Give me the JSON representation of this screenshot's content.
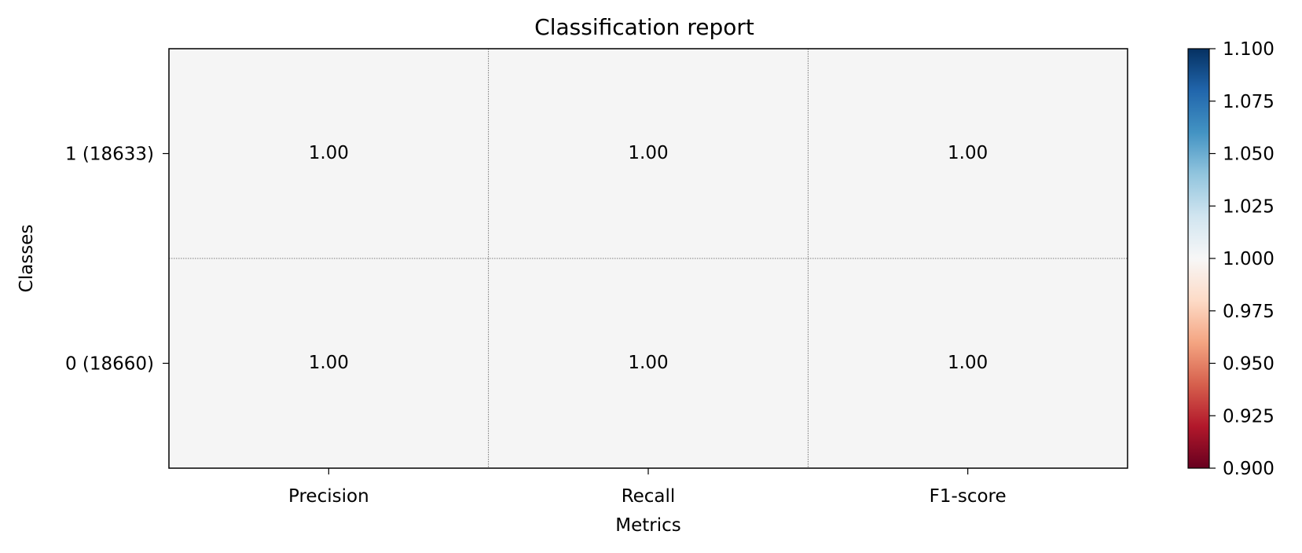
{
  "chart_data": {
    "type": "heatmap",
    "title": "Classification report",
    "xlabel": "Metrics",
    "ylabel": "Classes",
    "x_categories": [
      "Precision",
      "Recall",
      "F1-score"
    ],
    "y_categories": [
      "1 (18633)",
      "0 (18660)"
    ],
    "values": [
      [
        1.0,
        1.0,
        1.0
      ],
      [
        1.0,
        1.0,
        1.0
      ]
    ],
    "value_labels": [
      [
        "1.00",
        "1.00",
        "1.00"
      ],
      [
        "1.00",
        "1.00",
        "1.00"
      ]
    ],
    "colormap": "RdBu",
    "colorbar": {
      "min": 0.9,
      "max": 1.1,
      "ticks": [
        "0.900",
        "0.925",
        "0.950",
        "0.975",
        "1.000",
        "1.025",
        "1.050",
        "1.075",
        "1.100"
      ]
    },
    "grid": true,
    "colors": {
      "cell": "#f5f5f5",
      "grid_line": "#555555"
    }
  }
}
